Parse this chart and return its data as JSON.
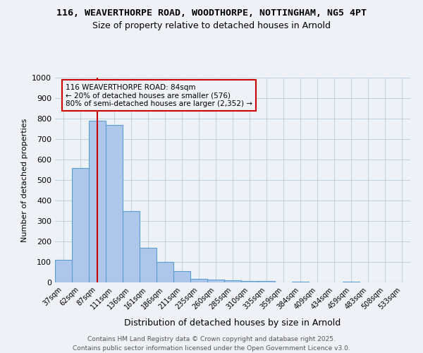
{
  "title_line1": "116, WEAVERTHORPE ROAD, WOODTHORPE, NOTTINGHAM, NG5 4PT",
  "title_line2": "Size of property relative to detached houses in Arnold",
  "xlabel": "Distribution of detached houses by size in Arnold",
  "ylabel": "Number of detached properties",
  "categories": [
    "37sqm",
    "62sqm",
    "87sqm",
    "111sqm",
    "136sqm",
    "161sqm",
    "186sqm",
    "211sqm",
    "235sqm",
    "260sqm",
    "285sqm",
    "310sqm",
    "335sqm",
    "359sqm",
    "384sqm",
    "409sqm",
    "434sqm",
    "459sqm",
    "483sqm",
    "508sqm",
    "533sqm"
  ],
  "bar_heights": [
    110,
    560,
    790,
    770,
    350,
    170,
    100,
    55,
    18,
    14,
    10,
    7,
    7,
    0,
    5,
    0,
    0,
    5,
    0,
    0,
    0
  ],
  "bar_color": "#aec6e8",
  "bar_edge_color": "#5a9fd4",
  "grid_color": "#c0d0e0",
  "vline_x": 2,
  "vline_color": "#cc0000",
  "annotation_text": "116 WEAVERTHORPE ROAD: 84sqm\n← 20% of detached houses are smaller (576)\n80% of semi-detached houses are larger (2,352) →",
  "annotation_box_color": "#cc0000",
  "ylim": [
    0,
    1000
  ],
  "yticks": [
    0,
    100,
    200,
    300,
    400,
    500,
    600,
    700,
    800,
    900,
    1000
  ],
  "footer_line1": "Contains HM Land Registry data © Crown copyright and database right 2025.",
  "footer_line2": "Contains public sector information licensed under the Open Government Licence v3.0.",
  "bg_color": "#eef2f7",
  "plot_bg_color": "#eef2f7"
}
